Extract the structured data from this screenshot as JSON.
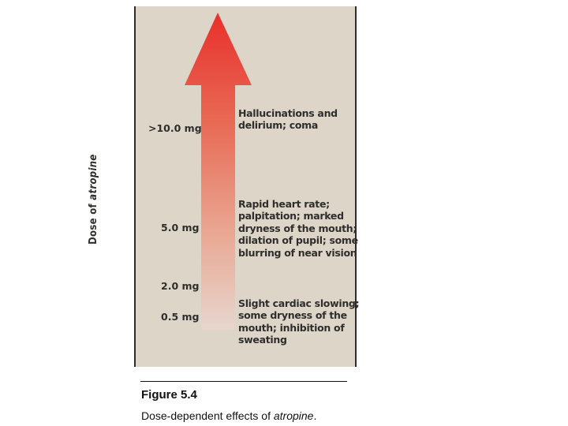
{
  "diagram": {
    "axis_label_prefix": "Dose of ",
    "axis_label_drug": "atropine",
    "colors": {
      "panel_background": "#dcd5c8",
      "arrow_top": "#e8302b",
      "arrow_bottom": "#e7d6ce",
      "text": "#2f2e2c"
    },
    "doses": [
      {
        "label": ">10.0 mg"
      },
      {
        "label": "5.0 mg"
      },
      {
        "label": "2.0 mg"
      },
      {
        "label": "0.5 mg"
      }
    ],
    "effects": [
      {
        "lines": [
          "Hallucinations and",
          "delirium; coma"
        ]
      },
      {
        "lines": [
          "Rapid heart rate;",
          "palpitation; marked",
          "dryness of the mouth;",
          "dilation of pupil; some",
          "blurring of near vision"
        ]
      },
      {
        "lines": [
          "Slight cardiac slowing;",
          "some dryness of the",
          "mouth; inhibition of",
          "sweating"
        ]
      }
    ]
  },
  "caption": {
    "title": "Figure 5.4",
    "text_prefix": "Dose-dependent effects of ",
    "text_drug": "atropine",
    "text_suffix": "."
  }
}
